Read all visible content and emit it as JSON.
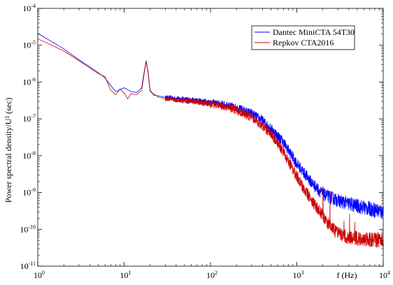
{
  "chart_data": {
    "type": "line",
    "title": "",
    "xlabel": "f (Hz)",
    "ylabel": "Power spectral density/U² (sec)",
    "x_scale": "log",
    "y_scale": "log",
    "xlim": [
      1,
      10000
    ],
    "ylim": [
      1e-11,
      0.0001
    ],
    "grid": false,
    "legend_position": "top-right",
    "x_ticks": [
      {
        "base": "10",
        "exp": "0",
        "value": 1
      },
      {
        "base": "10",
        "exp": "1",
        "value": 10
      },
      {
        "base": "10",
        "exp": "2",
        "value": 100
      },
      {
        "base": "10",
        "exp": "3",
        "value": 1000
      },
      {
        "base": "10",
        "exp": "4",
        "value": 10000
      }
    ],
    "y_ticks": [
      {
        "base": "10",
        "exp": "-11",
        "value": 1e-11
      },
      {
        "base": "10",
        "exp": "-10",
        "value": 1e-10
      },
      {
        "base": "10",
        "exp": "-9",
        "value": 1e-09
      },
      {
        "base": "10",
        "exp": "-8",
        "value": 1e-08
      },
      {
        "base": "10",
        "exp": "-7",
        "value": 1e-07
      },
      {
        "base": "10",
        "exp": "-6",
        "value": 1e-06
      },
      {
        "base": "10",
        "exp": "-5",
        "value": 1e-05
      },
      {
        "base": "10",
        "exp": "-4",
        "value": 0.0001
      }
    ],
    "series": [
      {
        "name": "Dantec MiniCTA 54T30",
        "color": "#0000ff",
        "points": [
          [
            1,
            2.1e-05
          ],
          [
            2,
            8e-06
          ],
          [
            3,
            4e-06
          ],
          [
            4,
            2.6e-06
          ],
          [
            5,
            1.8e-06
          ],
          [
            6,
            1.3e-06
          ],
          [
            7,
            8e-07
          ],
          [
            8,
            5.5e-07
          ],
          [
            10,
            7e-07
          ],
          [
            12,
            5.5e-07
          ],
          [
            14,
            5.2e-07
          ],
          [
            16,
            7e-07
          ],
          [
            17,
            1.8e-06
          ],
          [
            18,
            3.8e-06
          ],
          [
            19,
            1.8e-06
          ],
          [
            20,
            6e-07
          ],
          [
            22,
            4.4e-07
          ],
          [
            25,
            4.2e-07
          ],
          [
            30,
            3.8e-07
          ],
          [
            40,
            3.6e-07
          ],
          [
            50,
            3.4e-07
          ],
          [
            70,
            3.1e-07
          ],
          [
            100,
            2.8e-07
          ],
          [
            150,
            2.4e-07
          ],
          [
            200,
            2e-07
          ],
          [
            300,
            1.4e-07
          ],
          [
            400,
            9e-08
          ],
          [
            500,
            5.5e-08
          ],
          [
            600,
            3.5e-08
          ],
          [
            700,
            2.3e-08
          ],
          [
            800,
            1.4e-08
          ],
          [
            1000,
            6e-09
          ],
          [
            1200,
            3.5e-09
          ],
          [
            1500,
            1.8e-09
          ],
          [
            2000,
            9e-10
          ],
          [
            3000,
            6e-10
          ],
          [
            5000,
            4.3e-10
          ],
          [
            7000,
            3.6e-10
          ],
          [
            10000,
            3e-10
          ]
        ]
      },
      {
        "name": "Repkov CTA2016",
        "color": "#cc0000",
        "points": [
          [
            1,
            1.5e-05
          ],
          [
            2,
            7e-06
          ],
          [
            3,
            3.8e-06
          ],
          [
            4,
            2.4e-06
          ],
          [
            5,
            1.7e-06
          ],
          [
            6,
            1.4e-06
          ],
          [
            7,
            6e-07
          ],
          [
            8,
            4.5e-07
          ],
          [
            9,
            6.5e-07
          ],
          [
            10,
            5e-07
          ],
          [
            11,
            3.5e-07
          ],
          [
            12,
            4.8e-07
          ],
          [
            14,
            4.5e-07
          ],
          [
            16,
            6e-07
          ],
          [
            17,
            1.6e-06
          ],
          [
            18,
            3.6e-06
          ],
          [
            19,
            1.6e-06
          ],
          [
            20,
            5.5e-07
          ],
          [
            25,
            3.9e-07
          ],
          [
            30,
            3.5e-07
          ],
          [
            40,
            3.3e-07
          ],
          [
            50,
            3.1e-07
          ],
          [
            70,
            2.9e-07
          ],
          [
            100,
            2.5e-07
          ],
          [
            150,
            2.1e-07
          ],
          [
            200,
            1.7e-07
          ],
          [
            300,
            1.1e-07
          ],
          [
            400,
            6.5e-08
          ],
          [
            500,
            3.8e-08
          ],
          [
            600,
            2.2e-08
          ],
          [
            700,
            1.3e-08
          ],
          [
            800,
            7e-09
          ],
          [
            1000,
            2.8e-09
          ],
          [
            1200,
            1.3e-09
          ],
          [
            1500,
            6e-10
          ],
          [
            2000,
            2.3e-10
          ],
          [
            2500,
            1.1e-10
          ],
          [
            3000,
            7.5e-11
          ],
          [
            4000,
            6e-11
          ],
          [
            6000,
            5.5e-11
          ],
          [
            10000,
            5e-11
          ]
        ]
      }
    ]
  }
}
